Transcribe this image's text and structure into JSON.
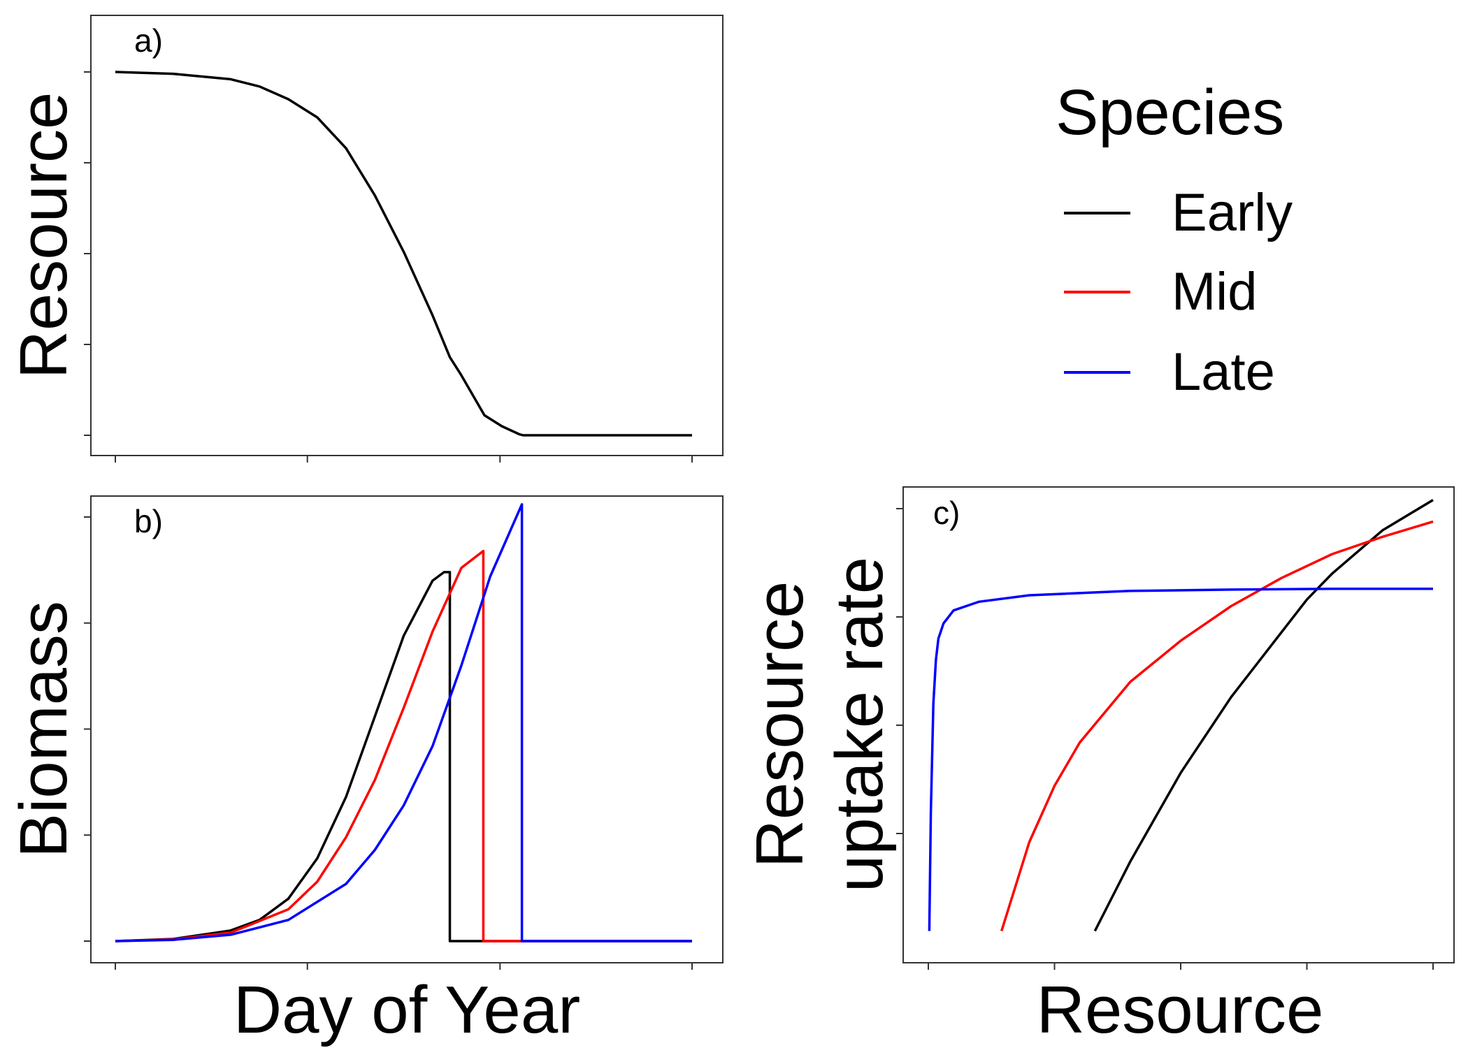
{
  "colors": {
    "early": "#000000",
    "mid": "#ff0000",
    "late": "#0000ff"
  },
  "legend": {
    "title": "Species",
    "items": [
      {
        "label": "Early",
        "color": "#000000"
      },
      {
        "label": "Mid",
        "color": "#ff0000"
      },
      {
        "label": "Late",
        "color": "#0000ff"
      }
    ]
  },
  "chart_data": [
    {
      "panel": "a)",
      "type": "line",
      "xlabel": "",
      "ylabel": "Resource",
      "xlim": [
        0,
        1
      ],
      "ylim": [
        0,
        1
      ],
      "x_ticks": [
        0,
        0.333,
        0.667,
        1
      ],
      "y_ticks": [
        0,
        0.25,
        0.5,
        0.75,
        1
      ],
      "tick_labels_shown": false,
      "grid": false,
      "series": [
        {
          "color": "#000000",
          "x": [
            0,
            0.1,
            0.2,
            0.25,
            0.3,
            0.35,
            0.4,
            0.45,
            0.5,
            0.55,
            0.58,
            0.6,
            0.64,
            0.67,
            0.7,
            0.707,
            0.75,
            0.85,
            1.0
          ],
          "y": [
            1.0,
            0.995,
            0.98,
            0.96,
            0.925,
            0.875,
            0.79,
            0.66,
            0.505,
            0.33,
            0.215,
            0.165,
            0.055,
            0.025,
            0.003,
            0,
            0,
            0,
            0
          ]
        }
      ]
    },
    {
      "panel": "b)",
      "type": "line",
      "xlabel": "Day of Year",
      "ylabel": "Biomass",
      "xlim": [
        0,
        1
      ],
      "ylim": [
        0,
        1
      ],
      "x_ticks": [
        0,
        0.333,
        0.667,
        1
      ],
      "y_ticks": [
        0,
        0.25,
        0.5,
        0.75,
        1
      ],
      "tick_labels_shown": false,
      "grid": false,
      "series": [
        {
          "color": "#000000",
          "x": [
            0,
            0.1,
            0.2,
            0.25,
            0.3,
            0.35,
            0.4,
            0.45,
            0.5,
            0.55,
            0.57,
            0.58,
            0.58,
            1.0
          ],
          "y": [
            0,
            0.005,
            0.025,
            0.05,
            0.1,
            0.195,
            0.34,
            0.53,
            0.72,
            0.85,
            0.87,
            0.87,
            0,
            0
          ]
        },
        {
          "color": "#ff0000",
          "x": [
            0,
            0.1,
            0.2,
            0.3,
            0.35,
            0.4,
            0.45,
            0.5,
            0.55,
            0.6,
            0.638,
            0.638,
            1.0
          ],
          "y": [
            0,
            0.004,
            0.02,
            0.075,
            0.14,
            0.245,
            0.38,
            0.55,
            0.73,
            0.88,
            0.92,
            0,
            0
          ]
        },
        {
          "color": "#0000ff",
          "x": [
            0,
            0.1,
            0.2,
            0.3,
            0.4,
            0.45,
            0.5,
            0.55,
            0.6,
            0.65,
            0.705,
            0.705,
            1.0
          ],
          "y": [
            0,
            0.003,
            0.015,
            0.05,
            0.135,
            0.215,
            0.32,
            0.46,
            0.65,
            0.86,
            1.03,
            0,
            0
          ]
        }
      ]
    },
    {
      "panel": "c)",
      "type": "line",
      "xlabel": "Resource",
      "ylabel": "Resource uptake rate",
      "xlim": [
        0,
        1
      ],
      "ylim": [
        0,
        1
      ],
      "x_ticks": [
        0,
        0.25,
        0.5,
        0.75,
        1
      ],
      "y_ticks": [
        0.25,
        0.5,
        0.75,
        1
      ],
      "tick_labels_shown": false,
      "grid": false,
      "series": [
        {
          "color": "#000000",
          "x": [
            0.33,
            0.4,
            0.5,
            0.6,
            0.7,
            0.75,
            0.8,
            0.9,
            1.0
          ],
          "y": [
            0.025,
            0.185,
            0.39,
            0.565,
            0.715,
            0.79,
            0.85,
            0.95,
            1.02
          ]
        },
        {
          "color": "#ff0000",
          "x": [
            0.145,
            0.2,
            0.25,
            0.3,
            0.4,
            0.5,
            0.6,
            0.7,
            0.8,
            0.9,
            1.0
          ],
          "y": [
            0.025,
            0.23,
            0.36,
            0.46,
            0.6,
            0.695,
            0.775,
            0.84,
            0.895,
            0.935,
            0.97
          ]
        },
        {
          "color": "#0000ff",
          "x": [
            0.002,
            0.005,
            0.01,
            0.015,
            0.02,
            0.03,
            0.05,
            0.1,
            0.2,
            0.4,
            0.6,
            0.8,
            1.0
          ],
          "y": [
            0.025,
            0.3,
            0.55,
            0.65,
            0.7,
            0.735,
            0.765,
            0.785,
            0.8,
            0.81,
            0.813,
            0.815,
            0.815
          ]
        }
      ]
    }
  ]
}
